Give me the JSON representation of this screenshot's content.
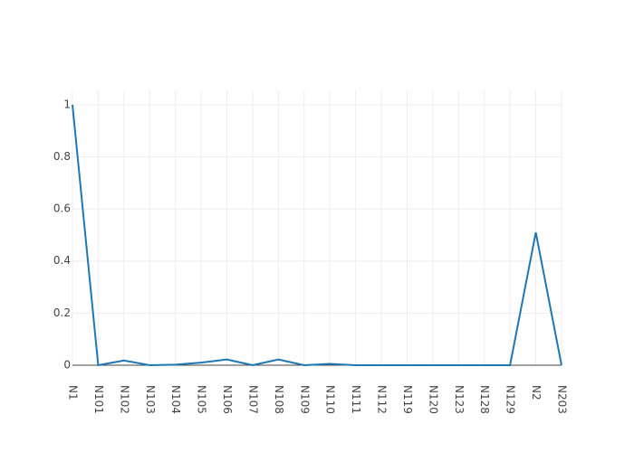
{
  "chart_data": {
    "type": "line",
    "categories": [
      "N1",
      "N101",
      "N102",
      "N103",
      "N104",
      "N105",
      "N106",
      "N107",
      "N108",
      "N109",
      "N110",
      "N111",
      "N112",
      "N119",
      "N120",
      "N123",
      "N128",
      "N129",
      "N2",
      "N203"
    ],
    "values": [
      1,
      0,
      0.018,
      0,
      0.002,
      0.01,
      0.022,
      0,
      0.022,
      0,
      0.005,
      0,
      0,
      0,
      0,
      0,
      0,
      0,
      0.51,
      0
    ],
    "color": "#1f77b4",
    "ylim": [
      0,
      1.055
    ],
    "yticks": [
      0,
      0.2,
      0.4,
      0.6,
      0.8,
      1
    ],
    "grid": true
  }
}
